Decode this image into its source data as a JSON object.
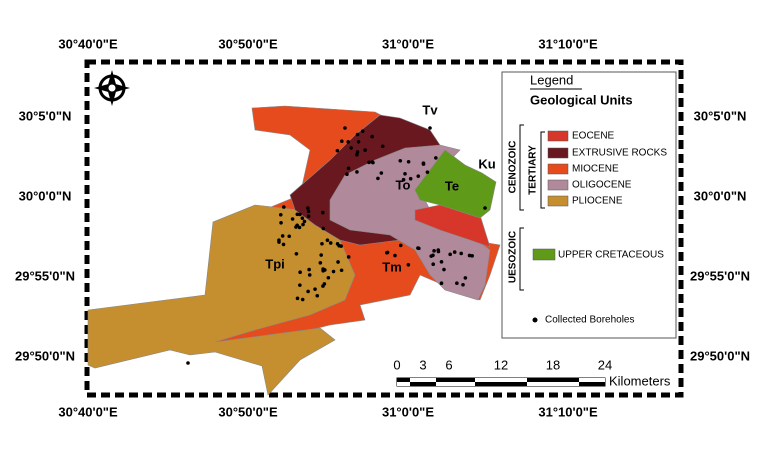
{
  "coordinates": {
    "top": [
      "30°40'0\"E",
      "30°50'0\"E",
      "31°0'0\"E",
      "31°10'0\"E"
    ],
    "bottom": [
      "30°40'0\"E",
      "30°50'0\"E",
      "31°0'0\"E",
      "31°10'0\"E"
    ],
    "left": [
      "30°5'0\"N",
      "30°0'0\"N",
      "29°55'0\"N",
      "29°50'0\"N"
    ],
    "right": [
      "30°5'0\"N",
      "30°0'0\"N",
      "29°55'0\"N",
      "29°50'0\"N"
    ]
  },
  "legend": {
    "title": "Legend",
    "subtitle": "Geological Units",
    "eras": [
      {
        "label": "CENOZOIC",
        "period": "TERTIARY",
        "units": [
          {
            "label": "EOCENE",
            "color": "#d7362a"
          },
          {
            "label": "EXTRUSIVE ROCKS",
            "color": "#6a1820"
          },
          {
            "label": "MIOCENE",
            "color": "#e64b1e"
          },
          {
            "label": "OLIGOCENE",
            "color": "#b0899a"
          },
          {
            "label": "PLIOCENE",
            "color": "#c58f30"
          }
        ]
      },
      {
        "label": "UESOZOIC",
        "units": [
          {
            "label": "UPPER CRETACEOUS",
            "color": "#5f9a18"
          }
        ]
      }
    ],
    "boreholes": "Collected Boreholes"
  },
  "map_labels": [
    "Tv",
    "To",
    "Te",
    "Ku",
    "Tpi",
    "Tm"
  ],
  "scale": {
    "ticks": [
      0,
      3,
      6,
      12,
      18,
      24
    ],
    "unit": "Kilometers"
  }
}
